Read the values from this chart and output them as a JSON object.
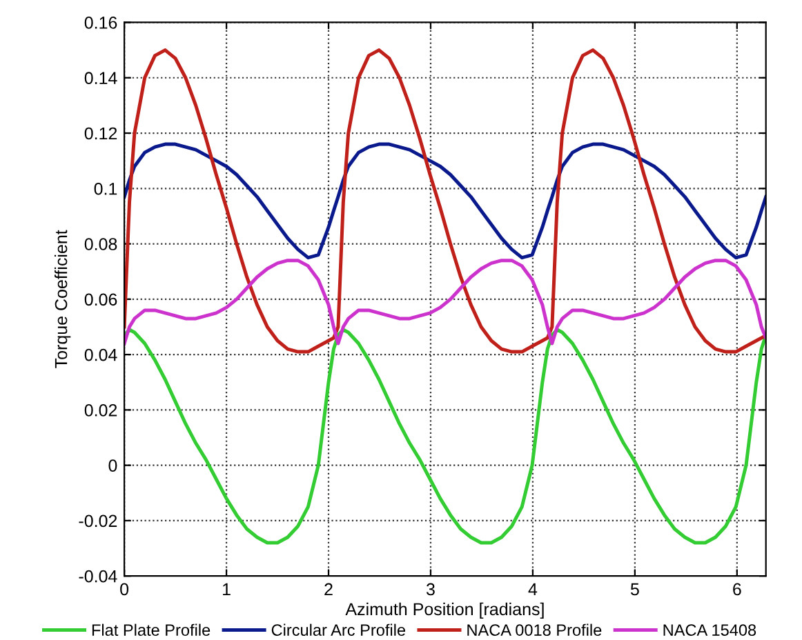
{
  "chart_data": {
    "type": "line",
    "xlabel": "Azimuth Position [radians]",
    "ylabel": "Torque Coefficient",
    "x": [
      0,
      0.05,
      0.1,
      0.2,
      0.3,
      0.4,
      0.5,
      0.6,
      0.7,
      0.8,
      0.9,
      1.0,
      1.1,
      1.2,
      1.3,
      1.4,
      1.5,
      1.6,
      1.7,
      1.8,
      1.9,
      2.0,
      2.05,
      2.094,
      2.144,
      2.194,
      2.294,
      2.394,
      2.494,
      2.594,
      2.694,
      2.794,
      2.894,
      2.994,
      3.094,
      3.194,
      3.294,
      3.394,
      3.494,
      3.594,
      3.694,
      3.794,
      3.894,
      3.994,
      4.094,
      4.144,
      4.189,
      4.239,
      4.289,
      4.389,
      4.489,
      4.589,
      4.689,
      4.789,
      4.889,
      4.989,
      5.089,
      5.189,
      5.289,
      5.389,
      5.489,
      5.589,
      5.689,
      5.789,
      5.889,
      5.989,
      6.089,
      6.189,
      6.239,
      6.283
    ],
    "series": [
      {
        "name": "Flat Plate Profile",
        "color": "#33cc33",
        "values": [
          0.047,
          0.049,
          0.048,
          0.044,
          0.038,
          0.031,
          0.023,
          0.015,
          0.008,
          0.002,
          -0.005,
          -0.012,
          -0.018,
          -0.023,
          -0.026,
          -0.028,
          -0.028,
          -0.026,
          -0.022,
          -0.015,
          0.0,
          0.03,
          0.042,
          0.047,
          0.049,
          0.048,
          0.044,
          0.038,
          0.031,
          0.023,
          0.015,
          0.008,
          0.002,
          -0.005,
          -0.012,
          -0.018,
          -0.023,
          -0.026,
          -0.028,
          -0.028,
          -0.026,
          -0.022,
          -0.015,
          0.0,
          0.03,
          0.042,
          0.047,
          0.049,
          0.048,
          0.044,
          0.038,
          0.031,
          0.023,
          0.015,
          0.008,
          0.002,
          -0.005,
          -0.012,
          -0.018,
          -0.023,
          -0.026,
          -0.028,
          -0.028,
          -0.026,
          -0.022,
          -0.015,
          0.0,
          0.03,
          0.042,
          0.047
        ]
      },
      {
        "name": "Circular Arc Profile",
        "color": "#0a1a8c",
        "values": [
          0.097,
          0.103,
          0.108,
          0.113,
          0.115,
          0.116,
          0.116,
          0.115,
          0.114,
          0.112,
          0.11,
          0.108,
          0.105,
          0.101,
          0.097,
          0.092,
          0.087,
          0.082,
          0.078,
          0.075,
          0.076,
          0.086,
          0.092,
          0.097,
          0.103,
          0.108,
          0.113,
          0.115,
          0.116,
          0.116,
          0.115,
          0.114,
          0.112,
          0.11,
          0.108,
          0.105,
          0.101,
          0.097,
          0.092,
          0.087,
          0.082,
          0.078,
          0.075,
          0.076,
          0.086,
          0.092,
          0.097,
          0.103,
          0.108,
          0.113,
          0.115,
          0.116,
          0.116,
          0.115,
          0.114,
          0.112,
          0.11,
          0.108,
          0.105,
          0.101,
          0.097,
          0.092,
          0.087,
          0.082,
          0.078,
          0.075,
          0.076,
          0.086,
          0.092,
          0.097
        ]
      },
      {
        "name": "NACA 0018 Profile",
        "color": "#c0201a",
        "values": [
          0.05,
          0.095,
          0.12,
          0.14,
          0.148,
          0.15,
          0.147,
          0.14,
          0.13,
          0.118,
          0.105,
          0.093,
          0.08,
          0.068,
          0.058,
          0.05,
          0.045,
          0.042,
          0.041,
          0.041,
          0.043,
          0.045,
          0.046,
          0.05,
          0.095,
          0.12,
          0.14,
          0.148,
          0.15,
          0.147,
          0.14,
          0.13,
          0.118,
          0.105,
          0.093,
          0.08,
          0.068,
          0.058,
          0.05,
          0.045,
          0.042,
          0.041,
          0.041,
          0.043,
          0.045,
          0.046,
          0.05,
          0.095,
          0.12,
          0.14,
          0.148,
          0.15,
          0.147,
          0.14,
          0.13,
          0.118,
          0.105,
          0.093,
          0.08,
          0.068,
          0.058,
          0.05,
          0.045,
          0.042,
          0.041,
          0.041,
          0.043,
          0.045,
          0.046,
          0.047
        ]
      },
      {
        "name": "NACA 15408",
        "color": "#cc33cc",
        "values": [
          0.044,
          0.05,
          0.053,
          0.056,
          0.056,
          0.055,
          0.054,
          0.053,
          0.053,
          0.054,
          0.055,
          0.057,
          0.06,
          0.064,
          0.068,
          0.071,
          0.073,
          0.074,
          0.074,
          0.072,
          0.067,
          0.058,
          0.05,
          0.044,
          0.05,
          0.053,
          0.056,
          0.056,
          0.055,
          0.054,
          0.053,
          0.053,
          0.054,
          0.055,
          0.057,
          0.06,
          0.064,
          0.068,
          0.071,
          0.073,
          0.074,
          0.074,
          0.072,
          0.067,
          0.058,
          0.05,
          0.044,
          0.05,
          0.053,
          0.056,
          0.056,
          0.055,
          0.054,
          0.053,
          0.053,
          0.054,
          0.055,
          0.057,
          0.06,
          0.064,
          0.068,
          0.071,
          0.073,
          0.074,
          0.074,
          0.072,
          0.067,
          0.058,
          0.05,
          0.046
        ]
      }
    ],
    "xlim": [
      0,
      6.283
    ],
    "ylim": [
      -0.04,
      0.16
    ],
    "xticks": [
      0,
      1,
      2,
      3,
      4,
      5,
      6
    ],
    "yticks": [
      -0.04,
      -0.02,
      0,
      0.02,
      0.04,
      0.06,
      0.08,
      0.1,
      0.12,
      0.14,
      0.16
    ],
    "grid": true,
    "legend": "bottom",
    "line_style": "solid"
  }
}
